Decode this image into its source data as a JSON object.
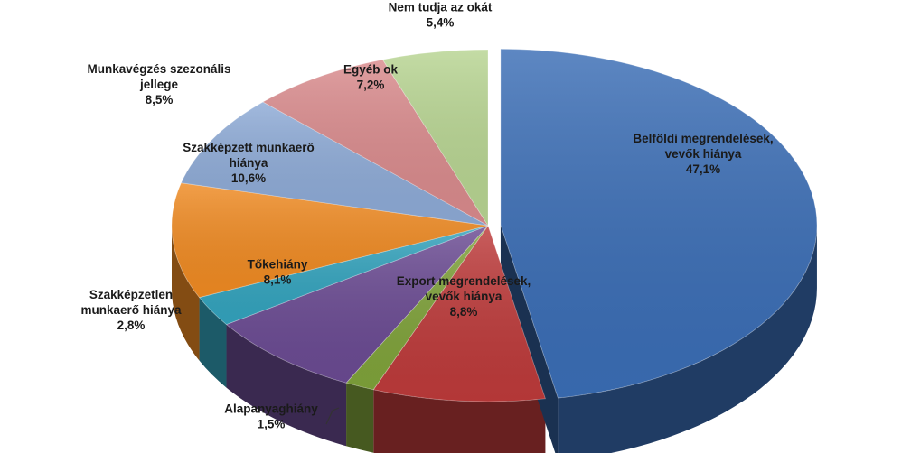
{
  "chart_data": {
    "type": "pie",
    "style": "3d-exploded-perspective",
    "slices": [
      {
        "label_lines": [
          "Belföldi megrendelések,",
          "vevők hiánya"
        ],
        "value_text": "47,1%",
        "value": 47.1,
        "color": "#3a6db5"
      },
      {
        "label_lines": [
          "Export megrendelések,",
          "vevők hiánya"
        ],
        "value_text": "8,8%",
        "value": 8.8,
        "color": "#bd3a3a"
      },
      {
        "label_lines": [
          "Alapanyaghiány"
        ],
        "value_text": "1,5%",
        "value": 1.5,
        "color": "#7fa23a"
      },
      {
        "label_lines": [
          "Tőkehiány"
        ],
        "value_text": "8,1%",
        "value": 8.1,
        "color": "#6a4a92"
      },
      {
        "label_lines": [
          "Szakképzetlen",
          "munkaerő hiánya"
        ],
        "value_text": "2,8%",
        "value": 2.8,
        "color": "#33a3bd"
      },
      {
        "label_lines": [
          "Szakképzett munkaerő",
          "hiánya"
        ],
        "value_text": "10,6%",
        "value": 10.6,
        "color": "#ef8a22"
      },
      {
        "label_lines": [
          "Munkavégzés szezonális",
          "jellege"
        ],
        "value_text": "8,5%",
        "value": 8.5,
        "color": "#8daad6"
      },
      {
        "label_lines": [
          "Egyéb ok"
        ],
        "value_text": "7,2%",
        "value": 7.2,
        "color": "#d98a8c"
      },
      {
        "label_lines": [
          "Nem tudja az okát"
        ],
        "value_text": "5,4%",
        "value": 5.4,
        "color": "#b7d491"
      }
    ]
  }
}
